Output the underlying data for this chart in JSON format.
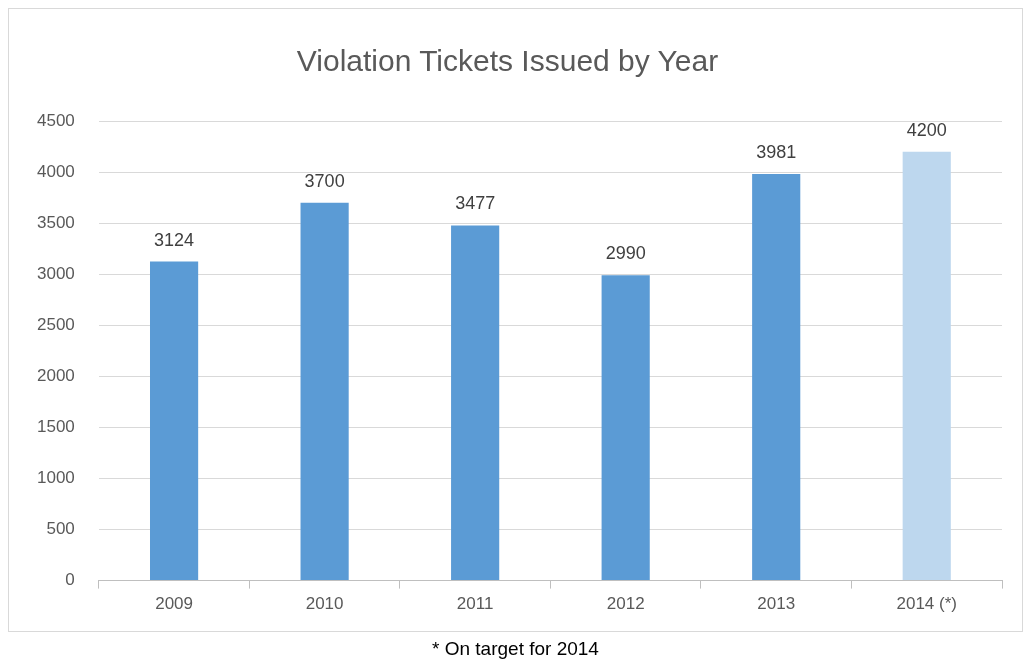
{
  "chart_data": {
    "type": "bar",
    "title": "Violation Tickets Issued by Year",
    "categories": [
      "2009",
      "2010",
      "2011",
      "2012",
      "2013",
      "2014 (*)"
    ],
    "values": [
      3124,
      3700,
      3477,
      2990,
      3981,
      4200
    ],
    "colors": [
      "#5b9bd5",
      "#5b9bd5",
      "#5b9bd5",
      "#5b9bd5",
      "#5b9bd5",
      "#bdd7ee"
    ],
    "ylim": [
      0,
      4500
    ],
    "yticks": [
      0,
      500,
      1000,
      1500,
      2000,
      2500,
      3000,
      3500,
      4000,
      4500
    ],
    "grid": "y",
    "data_labels": true,
    "legend": false,
    "annotations": [
      "* On target for 2014"
    ]
  }
}
